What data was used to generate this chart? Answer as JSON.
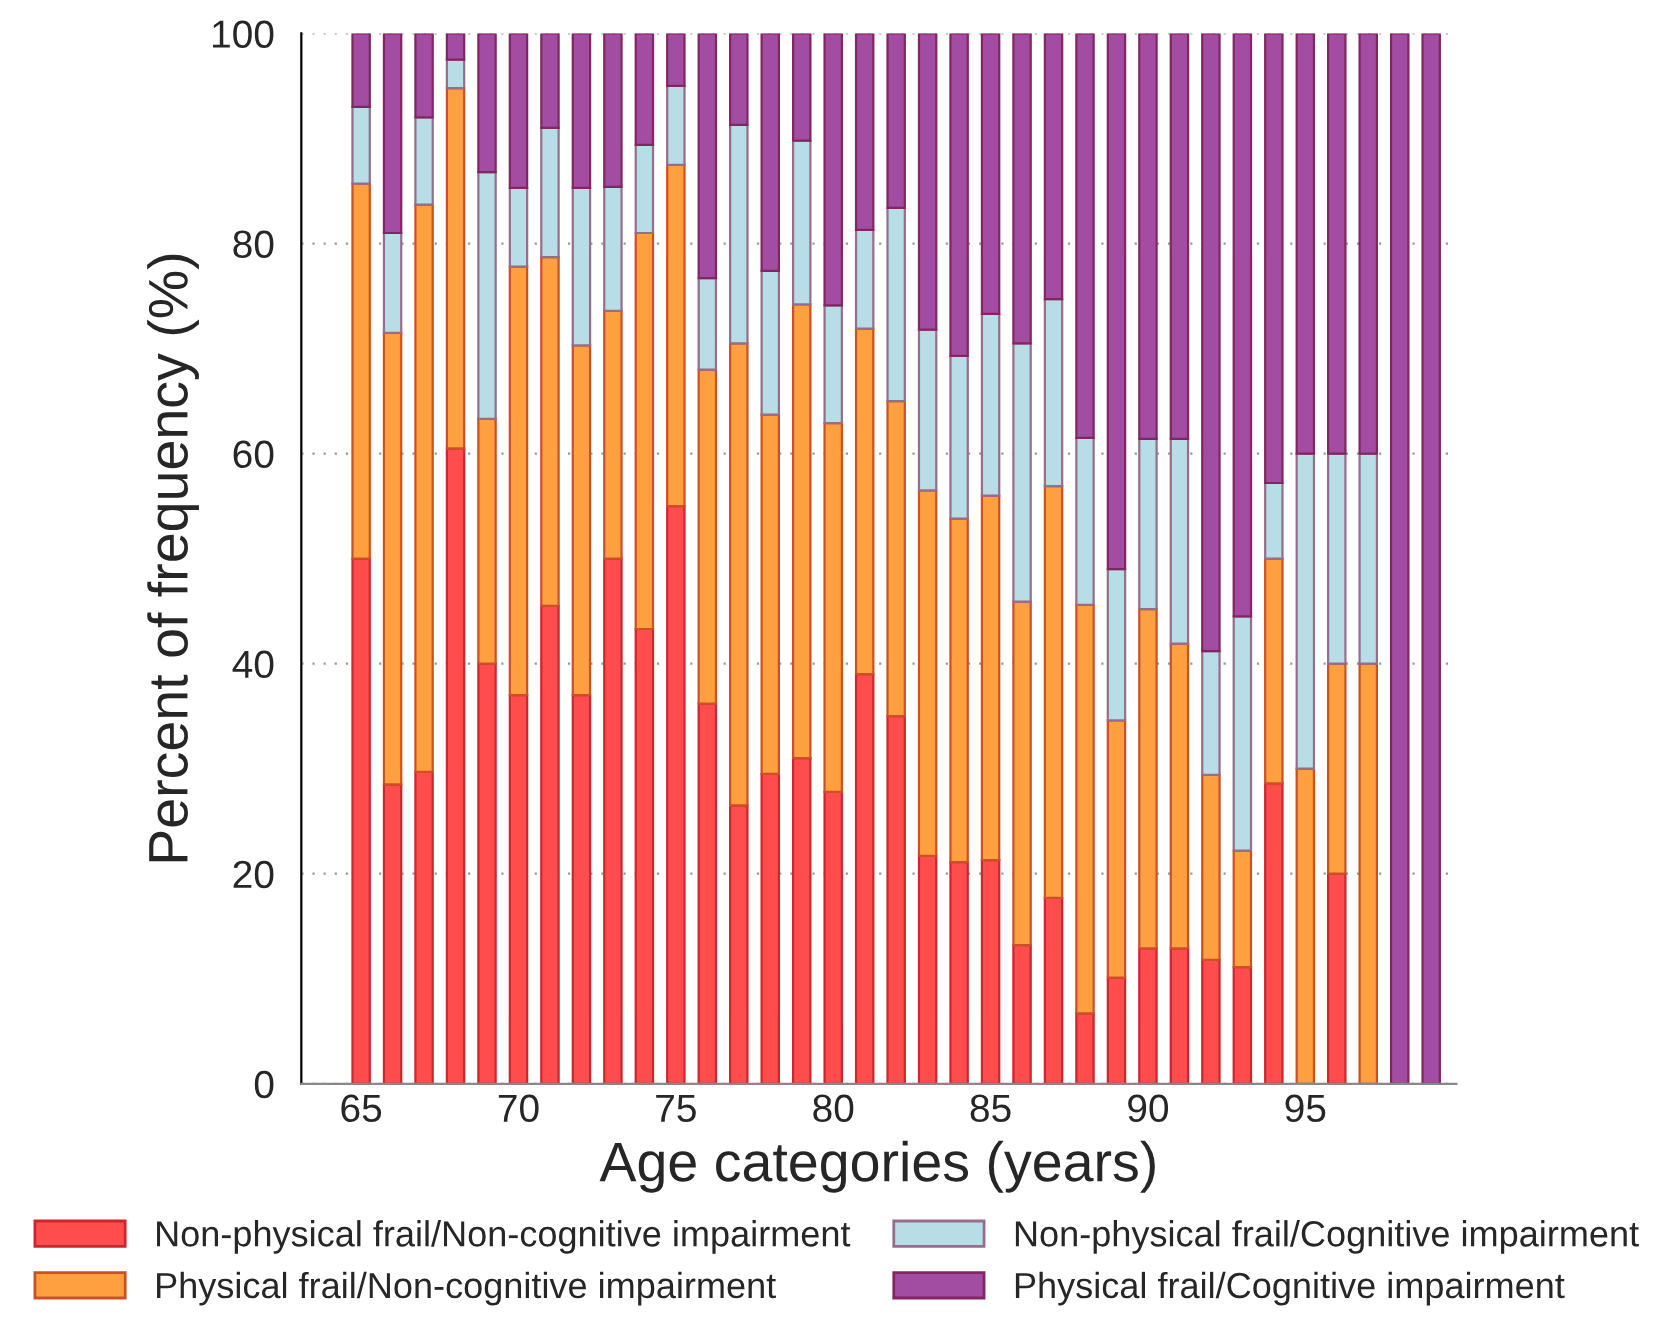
{
  "chart_data": {
    "type": "bar",
    "stacked": true,
    "xlabel": "Age categories (years)",
    "ylabel": "Percent of frequency (%)",
    "x": [
      65,
      66,
      67,
      68,
      69,
      70,
      71,
      72,
      73,
      74,
      75,
      76,
      77,
      78,
      79,
      80,
      81,
      82,
      83,
      84,
      85,
      86,
      87,
      88,
      89,
      90,
      91,
      92,
      93,
      94,
      95,
      96,
      97,
      98,
      99
    ],
    "xlim": [
      63.1,
      99.8
    ],
    "xticks": [
      65,
      70,
      75,
      80,
      85,
      90,
      95
    ],
    "ylim": [
      0,
      100
    ],
    "yticks": [
      0,
      20,
      40,
      60,
      80,
      100
    ],
    "grid": "y",
    "legend": "bottom",
    "series": [
      {
        "name": "Non-physical frail/Non-cognitive impairment",
        "color": "#ff4d4d",
        "values": [
          50,
          28.5,
          29.7,
          60.5,
          40,
          37,
          45.5,
          37,
          50,
          43.3,
          55,
          36.2,
          26.5,
          29.5,
          31,
          27.8,
          39,
          35,
          21.7,
          21.1,
          21.3,
          13.2,
          17.7,
          6.7,
          10.1,
          12.9,
          12.9,
          11.8,
          11.1,
          28.6,
          0,
          20,
          0,
          0,
          0
        ]
      },
      {
        "name": "Physical frail/Non-cognitive impairment",
        "color": "#ffa040",
        "values": [
          35.7,
          43,
          54,
          34.3,
          23.3,
          40.8,
          33.2,
          33.3,
          23.6,
          37.7,
          32.5,
          31.8,
          44,
          34.2,
          43.2,
          35.1,
          32.9,
          30,
          34.8,
          32.7,
          34.7,
          32.7,
          39.2,
          38.9,
          24.5,
          32.3,
          29,
          17.6,
          11.1,
          21.4,
          30,
          20,
          40,
          0,
          0
        ]
      },
      {
        "name": "Non-physical frail/Cognitive impairment",
        "color": "#b9dde6",
        "values": [
          7.3,
          9.5,
          8.3,
          2.7,
          23.5,
          7.5,
          12.3,
          15,
          11.8,
          8.4,
          7.5,
          8.7,
          20.8,
          13.7,
          15.6,
          11.2,
          9.4,
          18.4,
          15.3,
          15.5,
          17.3,
          24.6,
          17.8,
          15.9,
          14.4,
          16.2,
          19.5,
          11.8,
          22.3,
          7.2,
          30,
          20,
          20,
          0,
          0
        ]
      },
      {
        "name": "Physical frail/Cognitive impairment",
        "color": "#a24da2",
        "values": [
          7,
          19,
          8,
          2.5,
          13.2,
          14.7,
          9,
          14.7,
          14.6,
          10.6,
          5,
          23.3,
          8.7,
          22.6,
          10.2,
          25.9,
          18.7,
          16.6,
          28.2,
          30.7,
          26.7,
          29.5,
          25.3,
          38.5,
          51,
          38.6,
          38.6,
          58.8,
          55.5,
          42.8,
          40,
          40,
          40,
          100,
          100
        ]
      }
    ]
  }
}
